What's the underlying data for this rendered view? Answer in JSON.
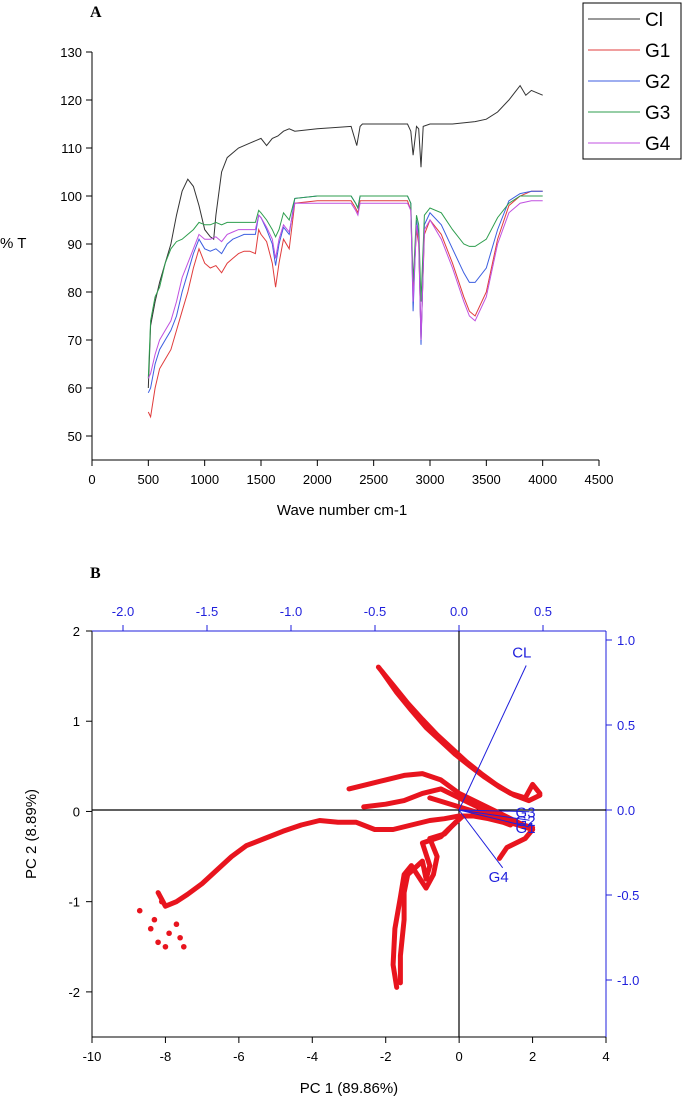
{
  "panel_a": {
    "letter": "A",
    "chart_data": {
      "type": "line",
      "xlabel": "Wave number cm-1",
      "ylabel": "% T",
      "xlim": [
        0,
        4500
      ],
      "ylim": [
        45,
        130
      ],
      "x_ticks": [
        0,
        500,
        1000,
        1500,
        2000,
        2500,
        3000,
        3500,
        4000,
        4500
      ],
      "y_ticks": [
        50,
        60,
        70,
        80,
        90,
        100,
        110,
        120,
        130
      ],
      "legend_position": "top-right, outside plot",
      "series": [
        {
          "name": "Cl",
          "color": "#333333",
          "x": [
            500,
            520,
            560,
            600,
            650,
            700,
            750,
            800,
            850,
            900,
            950,
            1000,
            1050,
            1080,
            1100,
            1150,
            1200,
            1300,
            1400,
            1500,
            1550,
            1600,
            1650,
            1700,
            1750,
            1800,
            2000,
            2300,
            2350,
            2380,
            2400,
            2500,
            2800,
            2830,
            2850,
            2880,
            2900,
            2920,
            2940,
            3000,
            3200,
            3400,
            3500,
            3600,
            3700,
            3750,
            3800,
            3850,
            3900,
            3950,
            4000
          ],
          "y": [
            60,
            73,
            78,
            82,
            86,
            90,
            96,
            101,
            103.5,
            102,
            98,
            93,
            91.5,
            91,
            96,
            105,
            108,
            110,
            111,
            112,
            110.5,
            112,
            112.5,
            113.5,
            114,
            113.5,
            114,
            114.5,
            110.5,
            114.5,
            115,
            115,
            115,
            113.5,
            108.5,
            114.5,
            114,
            106,
            114.5,
            115,
            115,
            115.5,
            116,
            117.5,
            120,
            121.5,
            123,
            121,
            122,
            121.5,
            121
          ]
        },
        {
          "name": "G1",
          "color": "#e03c3c",
          "x": [
            500,
            520,
            560,
            600,
            650,
            700,
            750,
            800,
            850,
            900,
            950,
            1000,
            1050,
            1100,
            1150,
            1200,
            1250,
            1300,
            1350,
            1400,
            1450,
            1480,
            1500,
            1550,
            1600,
            1630,
            1660,
            1700,
            1750,
            1800,
            2000,
            2300,
            2340,
            2360,
            2380,
            2400,
            2800,
            2830,
            2850,
            2880,
            2900,
            2920,
            2950,
            3000,
            3100,
            3200,
            3300,
            3350,
            3400,
            3500,
            3600,
            3700,
            3800,
            3900,
            4000
          ],
          "y": [
            55,
            54,
            60,
            64,
            66,
            68,
            72,
            76,
            80,
            85,
            89,
            86,
            85,
            85.5,
            84,
            86,
            87,
            88,
            88.5,
            88.5,
            88,
            93,
            92,
            90.5,
            86,
            81,
            86,
            91,
            89,
            98.5,
            99,
            99,
            97.5,
            96.5,
            99,
            99,
            99,
            97,
            80,
            93,
            90,
            70,
            92,
            95,
            92,
            86,
            79,
            76,
            75,
            80,
            91,
            98,
            100,
            101,
            101
          ]
        },
        {
          "name": "G2",
          "color": "#3c5ee0",
          "x": [
            500,
            520,
            560,
            600,
            650,
            700,
            750,
            800,
            850,
            900,
            950,
            1000,
            1050,
            1100,
            1150,
            1200,
            1250,
            1300,
            1350,
            1400,
            1450,
            1480,
            1500,
            1550,
            1600,
            1630,
            1660,
            1700,
            1750,
            1800,
            2000,
            2300,
            2340,
            2360,
            2380,
            2400,
            2800,
            2830,
            2850,
            2880,
            2900,
            2920,
            2950,
            3000,
            3100,
            3200,
            3300,
            3350,
            3400,
            3500,
            3600,
            3700,
            3800,
            3900,
            4000
          ],
          "y": [
            59,
            60,
            65,
            68,
            70,
            72,
            75,
            80,
            84,
            88,
            91,
            89,
            88.5,
            89,
            88,
            90,
            91,
            91.5,
            92,
            92,
            92,
            96,
            95.5,
            93,
            90,
            85.5,
            90,
            93.5,
            92,
            99.5,
            100,
            100,
            98.5,
            97.5,
            100,
            100,
            100,
            98.5,
            76,
            95,
            92,
            69,
            94,
            96.5,
            94,
            89,
            84,
            82,
            82,
            85,
            93,
            99,
            100.5,
            101,
            101
          ]
        },
        {
          "name": "G3",
          "color": "#2e9e4e",
          "x": [
            500,
            520,
            560,
            600,
            650,
            700,
            750,
            800,
            850,
            900,
            950,
            1000,
            1050,
            1100,
            1150,
            1200,
            1250,
            1300,
            1350,
            1400,
            1450,
            1480,
            1500,
            1550,
            1600,
            1630,
            1660,
            1700,
            1750,
            1800,
            2000,
            2300,
            2340,
            2360,
            2380,
            2400,
            2800,
            2830,
            2850,
            2880,
            2900,
            2920,
            2950,
            3000,
            3100,
            3200,
            3300,
            3350,
            3400,
            3500,
            3600,
            3700,
            3800,
            3900,
            4000
          ],
          "y": [
            62,
            74,
            79,
            81,
            86,
            89,
            90.5,
            91,
            92,
            93,
            94.5,
            94,
            94,
            94.5,
            94,
            94.5,
            94.5,
            94.5,
            94.5,
            94.5,
            94.5,
            97,
            96.5,
            95,
            93,
            91.5,
            93,
            96.5,
            95,
            99.5,
            100,
            100,
            98.5,
            97.5,
            100,
            100,
            100,
            98.5,
            82,
            96,
            94,
            78,
            96,
            97.5,
            96.5,
            93,
            90,
            89.5,
            89.5,
            91,
            95.5,
            98.5,
            100,
            100,
            100
          ]
        },
        {
          "name": "G4",
          "color": "#c050e0",
          "x": [
            500,
            520,
            560,
            600,
            650,
            700,
            750,
            800,
            850,
            900,
            950,
            1000,
            1050,
            1100,
            1150,
            1200,
            1250,
            1300,
            1350,
            1400,
            1450,
            1480,
            1500,
            1550,
            1600,
            1630,
            1660,
            1700,
            1750,
            1800,
            2000,
            2300,
            2340,
            2360,
            2380,
            2400,
            2800,
            2830,
            2850,
            2880,
            2900,
            2920,
            2950,
            3000,
            3100,
            3200,
            3300,
            3350,
            3400,
            3500,
            3600,
            3700,
            3800,
            3900,
            4000
          ],
          "y": [
            62,
            63,
            67,
            70,
            72,
            74,
            78,
            83,
            86,
            89,
            92,
            91,
            91,
            91.5,
            90.5,
            92,
            92.5,
            93,
            93,
            93,
            93,
            96,
            95.5,
            93.5,
            91,
            87,
            91,
            94,
            92.5,
            98.5,
            98.5,
            98.5,
            97,
            96,
            98.5,
            98.5,
            98.5,
            97,
            78,
            94,
            91,
            70,
            93,
            95,
            91,
            85,
            78,
            75,
            74,
            79,
            90,
            96.5,
            98.5,
            99,
            99
          ]
        }
      ]
    }
  },
  "panel_b": {
    "letter": "B",
    "chart_data": {
      "type": "scatter",
      "subtype": "biplot",
      "xlabel": "PC 1 (89.86%)",
      "ylabel": "PC 2 (8.89%)",
      "xlim": [
        -10,
        4
      ],
      "ylim": [
        -2.5,
        2
      ],
      "x_ticks": [
        -10,
        -8,
        -6,
        -4,
        -2,
        0,
        2,
        4
      ],
      "y_ticks": [
        -2,
        -1,
        0,
        1,
        2
      ],
      "top_axis": {
        "ticks": [
          -2.0,
          -1.5,
          -1.0,
          -0.5,
          0.0,
          0.5
        ],
        "tick_labels": [
          "-2.0",
          "-1.5",
          "-1.0",
          "-0.5",
          "0.0",
          "0.5"
        ]
      },
      "right_axis": {
        "ticks": [
          -1.0,
          -0.5,
          0.0,
          0.5,
          1.0
        ],
        "tick_labels": [
          "-1.0",
          "-0.5",
          "0.0",
          "0.5",
          "1.0"
        ]
      },
      "score_color": "#e8141e",
      "score_paths": [
        {
          "x": [
            -8.2,
            -8.0,
            -7.7,
            -7.4,
            -7.0,
            -6.6,
            -6.2,
            -5.8,
            -5.3,
            -4.8,
            -4.3,
            -3.8,
            -3.3,
            -2.8,
            -2.3,
            -1.8,
            -1.3,
            -0.8,
            -0.4,
            0.0,
            0.4,
            0.8,
            1.2,
            1.4
          ],
          "y": [
            -0.9,
            -1.05,
            -1.0,
            -0.92,
            -0.8,
            -0.65,
            -0.5,
            -0.38,
            -0.3,
            -0.22,
            -0.15,
            -0.1,
            -0.12,
            -0.12,
            -0.2,
            -0.2,
            -0.15,
            -0.1,
            -0.08,
            -0.05,
            -0.05,
            -0.08,
            -0.12,
            -0.15
          ]
        },
        {
          "x": [
            -2.2,
            -1.8,
            -1.4,
            -1.0,
            -0.6,
            -0.2,
            0.2,
            0.6,
            1.0,
            1.4,
            1.8,
            2.0,
            2.2
          ],
          "y": [
            1.6,
            1.4,
            1.2,
            1.02,
            0.85,
            0.7,
            0.55,
            0.42,
            0.3,
            0.2,
            0.15,
            0.3,
            0.2
          ]
        },
        {
          "x": [
            -2.1,
            -1.7,
            -1.3,
            -0.9,
            -0.5,
            -0.1,
            0.3,
            0.7,
            1.1,
            1.5,
            1.9,
            2.2
          ],
          "y": [
            1.55,
            1.32,
            1.12,
            0.93,
            0.78,
            0.63,
            0.5,
            0.38,
            0.27,
            0.18,
            0.12,
            0.18
          ]
        },
        {
          "x": [
            -1.6,
            -1.6,
            -1.5,
            -1.5,
            -1.4,
            -1.0,
            -0.9,
            -0.8,
            -1.0,
            -0.5,
            -0.3,
            0.1
          ],
          "y": [
            -1.9,
            -1.6,
            -1.2,
            -0.9,
            -0.7,
            -0.55,
            -0.75,
            -0.6,
            -0.35,
            -0.28,
            -0.2,
            -0.05
          ]
        },
        {
          "x": [
            -1.7,
            -1.8,
            -1.75,
            -1.6,
            -1.5,
            -1.3,
            -0.9,
            -0.7,
            -0.6,
            -0.8,
            -0.4,
            -0.1
          ],
          "y": [
            -1.95,
            -1.7,
            -1.3,
            -0.95,
            -0.7,
            -0.6,
            -0.85,
            -0.7,
            -0.5,
            -0.3,
            -0.25,
            -0.12
          ]
        },
        {
          "x": [
            -3.0,
            -2.5,
            -2.0,
            -1.5,
            -1.0,
            -0.5,
            0.0,
            0.5,
            1.0,
            1.5,
            2.0
          ],
          "y": [
            0.25,
            0.3,
            0.35,
            0.4,
            0.42,
            0.35,
            0.2,
            0.1,
            0.0,
            -0.1,
            -0.2
          ]
        },
        {
          "x": [
            -2.6,
            -2.0,
            -1.5,
            -1.0,
            -0.5,
            0.0,
            0.5,
            1.0,
            1.5,
            2.0
          ],
          "y": [
            0.05,
            0.08,
            0.12,
            0.2,
            0.25,
            0.15,
            0.05,
            -0.05,
            -0.12,
            -0.18
          ]
        },
        {
          "x": [
            -0.8,
            -0.4,
            0.0,
            0.4,
            0.8,
            1.2,
            1.6,
            2.0,
            1.8,
            1.3,
            1.1
          ],
          "y": [
            0.15,
            0.1,
            0.05,
            0.0,
            -0.05,
            -0.1,
            -0.15,
            -0.2,
            -0.3,
            -0.4,
            -0.52
          ]
        }
      ],
      "scattered_points": {
        "x": [
          -8.7,
          -8.4,
          -8.2,
          -8.0,
          -8.3,
          -7.9,
          -7.6,
          -7.5,
          -8.1,
          -7.7
        ],
        "y": [
          -1.1,
          -1.3,
          -1.45,
          -1.5,
          -1.2,
          -1.35,
          -1.4,
          -1.5,
          -1.0,
          -1.25
        ]
      },
      "loadings": [
        {
          "name": "CL",
          "x": 0.4,
          "y": 0.85
        },
        {
          "name": "G3",
          "x": 0.42,
          "y": -0.01
        },
        {
          "name": "G2",
          "x": 0.42,
          "y": -0.06
        },
        {
          "name": "G1",
          "x": 0.42,
          "y": -0.1
        },
        {
          "name": "G4",
          "x": 0.26,
          "y": -0.34
        }
      ],
      "loading_color": "#1f1fdc"
    }
  }
}
